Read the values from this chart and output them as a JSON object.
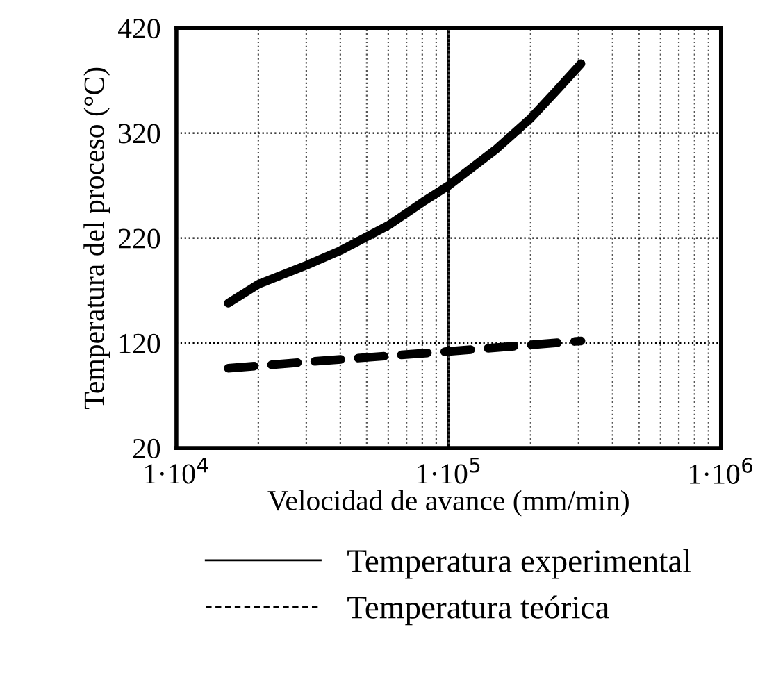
{
  "chart_data": {
    "type": "line",
    "xlabel": "Velocidad de avance (mm/min)",
    "ylabel": "Temperatura del proceso (°C)",
    "log": "x",
    "xlim": [
      10000,
      1000000
    ],
    "ylim": [
      20,
      420
    ],
    "xticks": [
      {
        "value": 10000,
        "label": "1·10$^{4}$"
      },
      {
        "value": 100000,
        "label": "1·10$^{5}$"
      },
      {
        "value": 1000000,
        "label": "1·10$^{6}$"
      }
    ],
    "yticks": [
      20,
      120,
      220,
      320,
      420
    ],
    "ref_lines": [
      {
        "axis": "x",
        "value": 100000,
        "color": "#000000",
        "line_style": "solid"
      }
    ],
    "grid": true,
    "legend": "bottom",
    "marker": "none",
    "series": [
      {
        "name": "Temperatura experimental",
        "color": "#000000",
        "line_style": "solid",
        "x": [
          15500,
          20000,
          30000,
          40000,
          60000,
          80000,
          100000,
          150000,
          200000,
          250000,
          306000
        ],
        "values": [
          158,
          176,
          194,
          208,
          232,
          254,
          270,
          305,
          334,
          361,
          386
        ]
      },
      {
        "name": "Temperatura teórica",
        "color": "#000000",
        "line_style": "dashed",
        "x": [
          15500,
          30000,
          100000,
          306000
        ],
        "values": [
          96,
          102,
          112,
          122
        ]
      }
    ]
  }
}
